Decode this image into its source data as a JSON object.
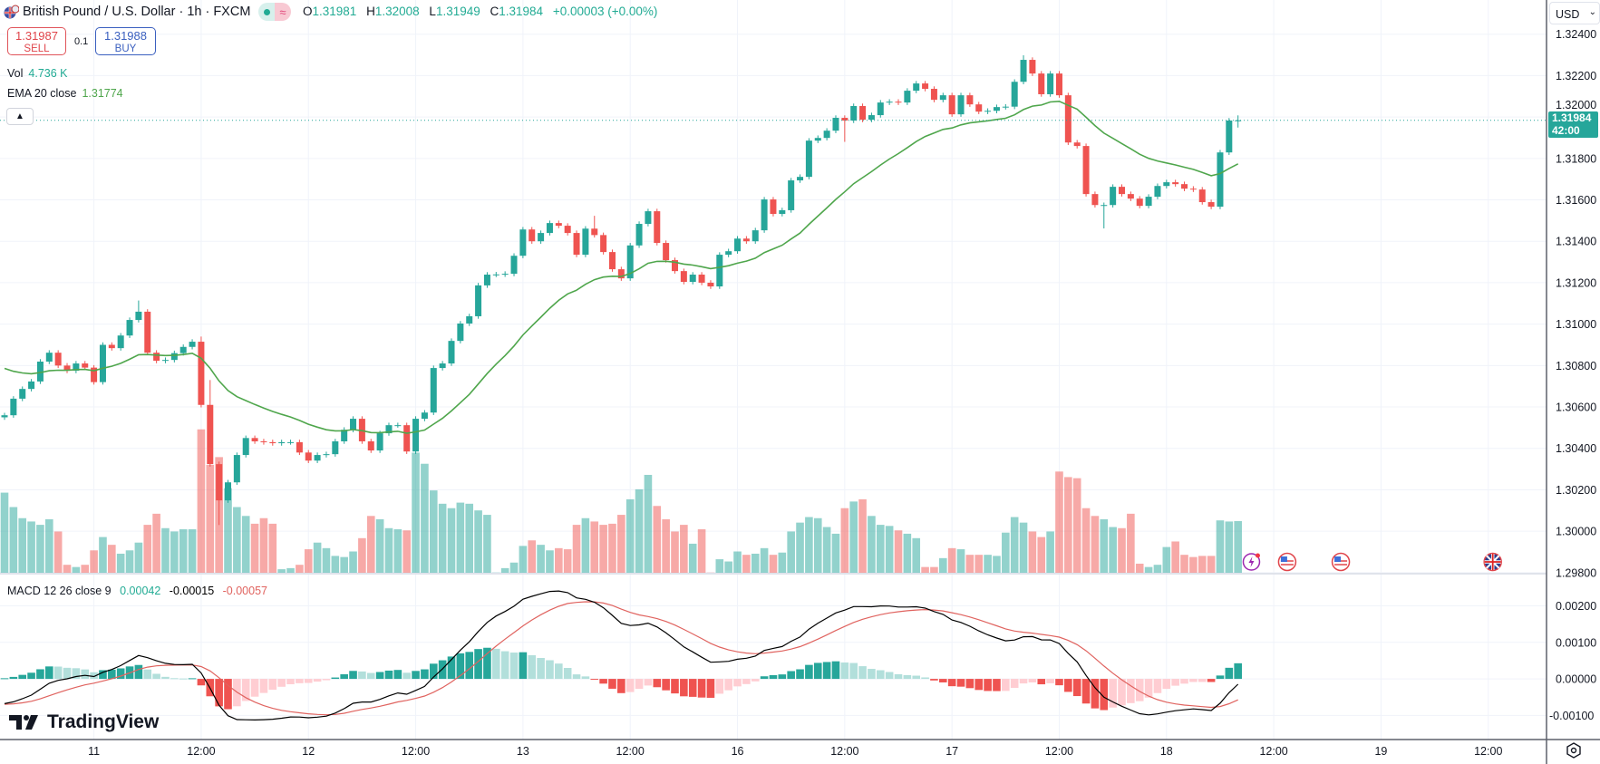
{
  "header": {
    "title": "British Pound / U.S. Dollar · 1h · FXCM",
    "ohlc": {
      "o_label": "O",
      "o": "1.31981",
      "h_label": "H",
      "h": "1.32008",
      "l_label": "L",
      "l": "1.31949",
      "c_label": "C",
      "c": "1.31984",
      "change": "+0.00003 (+0.00%)"
    },
    "market_status_icon": "market-open-dot",
    "data_icon": "≈"
  },
  "trade": {
    "sell_price": "1.31987",
    "sell_label": "SELL",
    "lot": "0.1",
    "buy_price": "1.31988",
    "buy_label": "BUY"
  },
  "legends": {
    "vol_label": "Vol",
    "vol_value": "4.736 K",
    "ema_label": "EMA 20 close",
    "ema_value": "1.31774",
    "macd_label": "MACD 12 26 close 9",
    "macd_hist": "0.00042",
    "macd_line": "-0.00015",
    "macd_signal": "-0.00057"
  },
  "currency": "USD",
  "current_price": {
    "value": "1.31984",
    "countdown": "42:00"
  },
  "branding": "TradingView",
  "colors": {
    "up": "#26a69a",
    "down": "#ef5350",
    "up_vol": "rgba(38,166,154,0.5)",
    "down_vol": "rgba(239,83,80,0.5)",
    "ema": "#4fa64c",
    "macd": "#000000",
    "signal": "#e0635f",
    "hist_up_strong": "#26a69a",
    "hist_up_weak": "#b2dfdb",
    "hist_down_strong": "#ef5350",
    "hist_down_weak": "#ffcdd2",
    "grid": "#f0f3fa"
  },
  "chart_data": {
    "type": "candlestick",
    "title": "British Pound / U.S. Dollar · 1h · FXCM",
    "ylim": [
      1.29795,
      1.32565
    ],
    "price_ticks": [
      "1.32400",
      "1.32200",
      "1.32000",
      "1.31800",
      "1.31600",
      "1.31400",
      "1.31200",
      "1.31000",
      "1.30800",
      "1.30600",
      "1.30400",
      "1.30200",
      "1.30000",
      "1.29800"
    ],
    "time_labels": [
      {
        "label": "11",
        "index": 10
      },
      {
        "label": "12:00",
        "index": 22
      },
      {
        "label": "12",
        "index": 34
      },
      {
        "label": "12:00",
        "index": 46
      },
      {
        "label": "13",
        "index": 58
      },
      {
        "label": "12:00",
        "index": 70
      },
      {
        "label": "16",
        "index": 82
      },
      {
        "label": "12:00",
        "index": 94
      },
      {
        "label": "17",
        "index": 106
      },
      {
        "label": "12:00",
        "index": 118
      },
      {
        "label": "18",
        "index": 130
      },
      {
        "label": "12:00",
        "index": 142
      },
      {
        "label": "19",
        "index": 154
      },
      {
        "label": "12:00",
        "index": 166
      }
    ],
    "close": [
      1.3056,
      1.3064,
      1.30687,
      1.30723,
      1.30819,
      1.30862,
      1.308,
      1.30775,
      1.3081,
      1.3079,
      1.3072,
      1.309,
      1.30884,
      1.30945,
      1.3102,
      1.3106,
      1.30862,
      1.30823,
      1.30827,
      1.3086,
      1.3089,
      1.30915,
      1.3061,
      1.30324,
      1.30149,
      1.30236,
      1.30368,
      1.3045,
      1.30434,
      1.3043,
      1.30425,
      1.3043,
      1.3043,
      1.3038,
      1.30341,
      1.30368,
      1.30372,
      1.30434,
      1.3049,
      1.30543,
      1.30434,
      1.3039,
      1.30473,
      1.30512,
      1.30512,
      1.30385,
      1.30543,
      1.30573,
      1.30788,
      1.3081,
      1.30919,
      1.31003,
      1.31038,
      1.31187,
      1.31239,
      1.3124,
      1.31243,
      1.3133,
      1.31457,
      1.314,
      1.3144,
      1.31488,
      1.31475,
      1.3144,
      1.31335,
      1.31461,
      1.3143,
      1.31348,
      1.31265,
      1.31221,
      1.3138,
      1.31484,
      1.31545,
      1.31392,
      1.31309,
      1.31256,
      1.31204,
      1.31239,
      1.312,
      1.31182,
      1.31335,
      1.31352,
      1.31413,
      1.314,
      1.31453,
      1.31602,
      1.31532,
      1.3155,
      1.31694,
      1.31711,
      1.31886,
      1.31899,
      1.31934,
      1.31996,
      1.31983,
      1.32053,
      1.31987,
      1.32009,
      1.3207,
      1.32074,
      1.3207,
      1.32127,
      1.32162,
      1.32136,
      1.32083,
      1.32105,
      1.32013,
      1.32105,
      1.32061,
      1.32026,
      1.3203,
      1.32048,
      1.3205,
      1.3217,
      1.32276,
      1.3221,
      1.3211,
      1.3221,
      1.32105,
      1.31877,
      1.3186,
      1.31628,
      1.31575,
      1.31575,
      1.31663,
      1.31628,
      1.31606,
      1.31571,
      1.31615,
      1.31667,
      1.31685,
      1.31676,
      1.31654,
      1.3165,
      1.31589,
      1.31567,
      1.31829,
      1.31983,
      1.31984
    ],
    "ohlc_overrides": {
      "0": {
        "o": 1.3055
      },
      "15": {
        "h": 1.31114
      },
      "22": {
        "h": 1.3094
      },
      "23": {
        "h": 1.3073
      },
      "24": {
        "l": 1.3003
      },
      "66": {
        "h": 1.31523
      },
      "94": {
        "l": 1.3188
      },
      "114": {
        "h": 1.32298
      },
      "123": {
        "l": 1.31462
      },
      "138": {
        "o": 1.31981,
        "h": 1.32008,
        "l": 1.31949
      }
    },
    "volume_k": [
      7.3,
      6.0,
      5.0,
      4.7,
      4.4,
      4.9,
      3.8,
      0.8,
      0.6,
      0.8,
      2.1,
      3.3,
      2.6,
      1.8,
      2.1,
      2.8,
      4.4,
      5.4,
      4.1,
      3.8,
      4.0,
      4.0,
      13.0,
      9.8,
      10.5,
      7.7,
      6.0,
      5.2,
      4.5,
      5.0,
      4.5,
      0.4,
      0.5,
      0.8,
      2.2,
      2.8,
      2.3,
      1.6,
      1.5,
      2.0,
      3.2,
      5.2,
      4.9,
      4.1,
      4.0,
      3.9,
      10.9,
      9.9,
      7.5,
      6.3,
      5.9,
      6.4,
      6.3,
      5.7,
      5.3,
      0.1,
      0.5,
      1.0,
      2.5,
      3.0,
      2.6,
      2.1,
      2.3,
      2.2,
      4.4,
      5.0,
      4.7,
      4.4,
      4.5,
      5.3,
      6.7,
      7.6,
      8.9,
      6.1,
      4.9,
      3.8,
      4.4,
      2.7,
      4.0,
      0.1,
      1.3,
      1.1,
      2.0,
      1.7,
      1.8,
      2.3,
      1.7,
      1.9,
      3.8,
      4.6,
      5.1,
      5.0,
      4.2,
      3.6,
      5.9,
      6.5,
      6.7,
      5.2,
      4.4,
      4.3,
      3.9,
      3.6,
      3.2,
      0.6,
      0.6,
      1.4,
      2.3,
      2.2,
      1.7,
      1.7,
      1.7,
      1.6,
      3.7,
      5.1,
      4.6,
      3.8,
      3.3,
      3.8,
      9.2,
      8.7,
      8.6,
      5.9,
      5.2,
      4.9,
      4.2,
      4.1,
      5.4,
      0.9,
      0.6,
      0.8,
      2.4,
      2.9,
      1.7,
      1.5,
      1.6,
      1.6,
      4.8,
      4.7,
      4.736
    ],
    "ema": {
      "period": 20,
      "seed": 1.3081
    },
    "macd": {
      "fast": 12,
      "slow": 26,
      "signal": 9,
      "seed_ema12": 1.30655,
      "seed_ema26": 1.3072,
      "seed_signal": -0.0007,
      "ylim": [
        -0.00166,
        0.00288
      ],
      "ticks": [
        "0.00200",
        "0.00100",
        "0.00000",
        "-0.00100"
      ]
    },
    "events": [
      {
        "type": "lightning",
        "index": 139.5
      },
      {
        "type": "us",
        "index": 143.5
      },
      {
        "type": "us",
        "index": 149.5
      },
      {
        "type": "uk",
        "index": 166.5
      }
    ]
  }
}
